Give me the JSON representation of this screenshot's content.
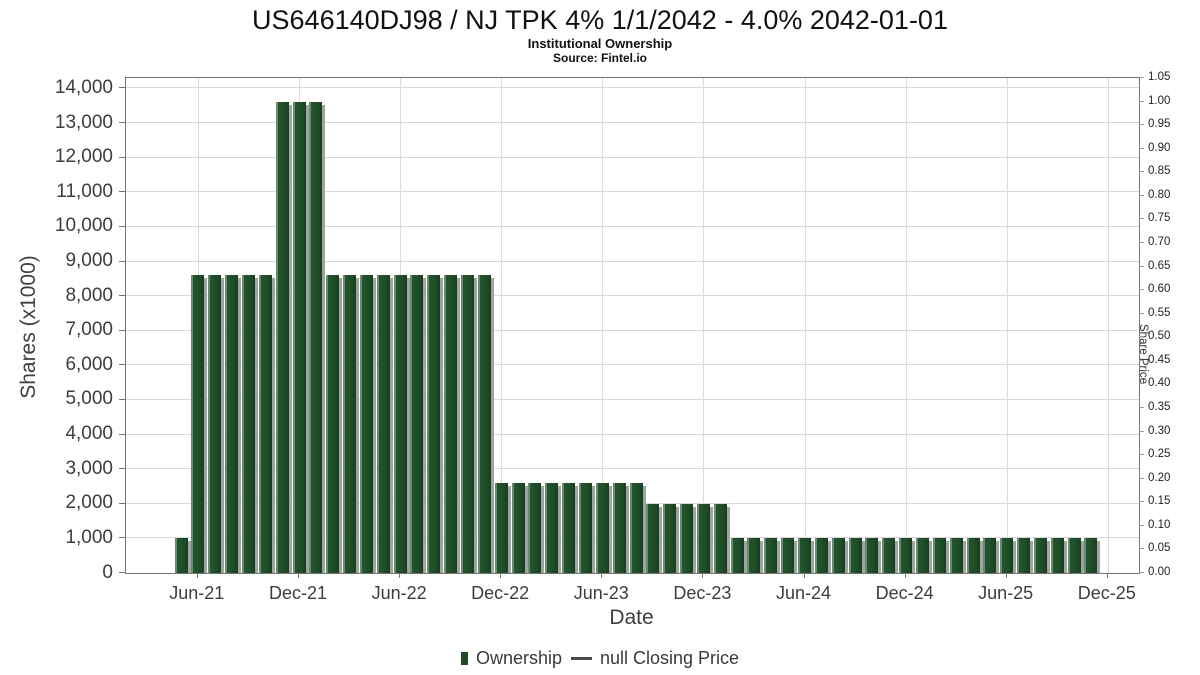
{
  "header": {
    "title": "US646140DJ98 / NJ TPK 4% 1/1/2042 - 4.0% 2042-01-01",
    "subtitle": "Institutional Ownership",
    "source": "Source: Fintel.io"
  },
  "colors": {
    "bar_fill": "#1e4e27",
    "bar_highlight": "#628e69",
    "bar_shadow": "#a2a2a2",
    "grid": "#d9d9d9",
    "axis_spine": "#757575",
    "tick_text": "#3d3d3d"
  },
  "chart_data": {
    "type": "bar",
    "title": "US646140DJ98 / NJ TPK 4% 1/1/2042 - 4.0% 2042-01-01",
    "subtitle": "Institutional Ownership",
    "source": "Source: Fintel.io",
    "xlabel": "Date",
    "ylabel_left": "Shares (x1000)",
    "ylabel_right": "Share Price",
    "grid": true,
    "legend_position": "bottom",
    "categories": [
      "May-21",
      "Jun-21",
      "Jul-21",
      "Aug-21",
      "Sep-21",
      "Oct-21",
      "Nov-21",
      "Dec-21",
      "Jan-22",
      "Feb-22",
      "Mar-22",
      "Apr-22",
      "May-22",
      "Jun-22",
      "Jul-22",
      "Aug-22",
      "Sep-22",
      "Oct-22",
      "Nov-22",
      "Dec-22",
      "Jan-23",
      "Feb-23",
      "Mar-23",
      "Apr-23",
      "May-23",
      "Jun-23",
      "Jul-23",
      "Aug-23",
      "Sep-23",
      "Oct-23",
      "Nov-23",
      "Dec-23",
      "Jan-24",
      "Feb-24",
      "Mar-24",
      "Apr-24",
      "May-24",
      "Jun-24",
      "Jul-24",
      "Aug-24",
      "Sep-24",
      "Oct-24",
      "Nov-24",
      "Dec-24",
      "Jan-25",
      "Feb-25",
      "Mar-25",
      "Apr-25",
      "May-25",
      "Jun-25",
      "Jul-25",
      "Aug-25",
      "Sep-25",
      "Oct-25",
      "Nov-25"
    ],
    "series": [
      {
        "name": "Ownership",
        "type": "bar",
        "axis": "left",
        "values": [
          1000,
          8600,
          8600,
          8600,
          8600,
          8600,
          13600,
          13600,
          13600,
          8600,
          8600,
          8600,
          8600,
          8600,
          8600,
          8600,
          8600,
          8600,
          8600,
          2600,
          2600,
          2600,
          2600,
          2600,
          2600,
          2600,
          2600,
          2600,
          2000,
          2000,
          2000,
          2000,
          2000,
          1000,
          1000,
          1000,
          1000,
          1000,
          1000,
          1000,
          1000,
          1000,
          1000,
          1000,
          1000,
          1000,
          1000,
          1000,
          1000,
          1000,
          1000,
          1000,
          1000,
          1000,
          1000
        ]
      },
      {
        "name": "null Closing Price",
        "type": "line",
        "axis": "right",
        "values": []
      }
    ],
    "y_left": {
      "min": 0,
      "max": 14000,
      "step": 1000,
      "axis_display_max": 14300
    },
    "y_right": {
      "min": 0.0,
      "max": 1.05,
      "step": 0.05
    },
    "x_ticks": [
      {
        "label": "Jun-21",
        "month_index": 1
      },
      {
        "label": "Dec-21",
        "month_index": 7
      },
      {
        "label": "Jun-22",
        "month_index": 13
      },
      {
        "label": "Dec-22",
        "month_index": 19
      },
      {
        "label": "Jun-23",
        "month_index": 25
      },
      {
        "label": "Dec-23",
        "month_index": 31
      },
      {
        "label": "Jun-24",
        "month_index": 37
      },
      {
        "label": "Dec-24",
        "month_index": 43
      },
      {
        "label": "Jun-25",
        "month_index": 49
      },
      {
        "label": "Dec-25",
        "month_index": 55
      }
    ],
    "legend": [
      {
        "label": "Ownership",
        "symbol": "bar-swatch"
      },
      {
        "label": "null Closing Price",
        "symbol": "line"
      }
    ]
  }
}
